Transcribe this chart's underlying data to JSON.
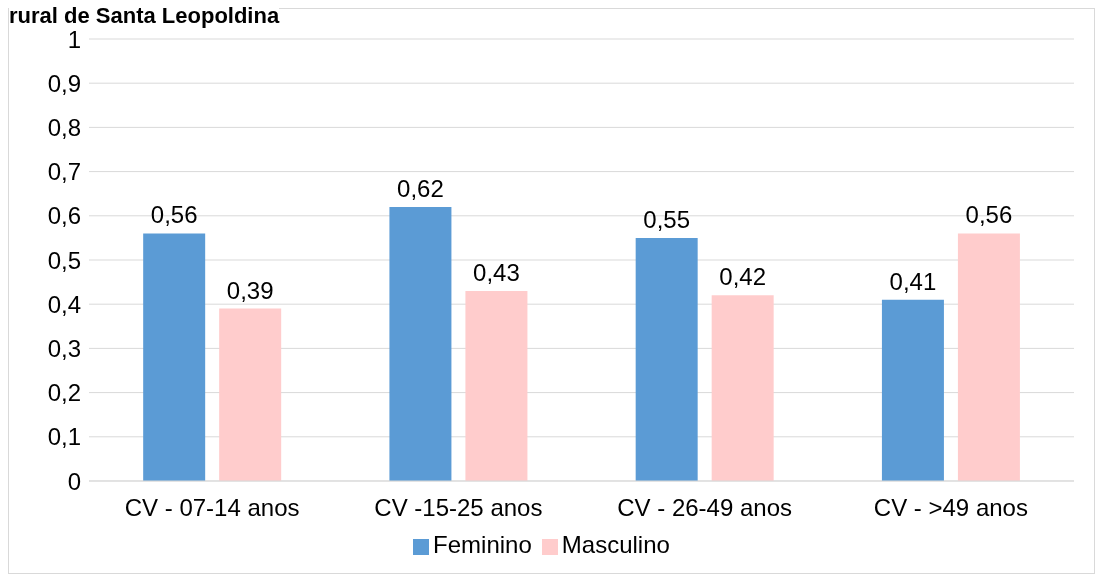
{
  "chart_data": {
    "type": "bar",
    "title": "rural de Santa Leopoldina",
    "categories": [
      "CV - 07-14 anos",
      "CV -15-25 anos",
      "CV - 26-49 anos",
      "CV - >49 anos"
    ],
    "series": [
      {
        "name": "Feminino",
        "color": "#5b9bd5",
        "values": [
          0.56,
          0.62,
          0.55,
          0.41
        ],
        "value_labels": [
          "0,56",
          "0,62",
          "0,55",
          "0,41"
        ]
      },
      {
        "name": "Masculino",
        "color": "#ffcccc",
        "values": [
          0.39,
          0.43,
          0.42,
          0.56
        ],
        "value_labels": [
          "0,39",
          "0,43",
          "0,42",
          "0,56"
        ]
      }
    ],
    "ylim": [
      0,
      1
    ],
    "yticks": [
      0,
      {
        "value": 0.1,
        "label": "0,1"
      },
      {
        "value": 0.2,
        "label": "0,2"
      },
      {
        "value": 0.3,
        "label": "0,3"
      },
      {
        "value": 0.4,
        "label": "0,4"
      },
      {
        "value": 0.5,
        "label": "0,5"
      },
      {
        "value": 0.6,
        "label": "0,6"
      },
      {
        "value": 0.7,
        "label": "0,7"
      },
      {
        "value": 0.8,
        "label": "0,8"
      },
      {
        "value": 0.9,
        "label": "0,9"
      },
      1
    ],
    "grid": "y",
    "legend": "bottom"
  }
}
